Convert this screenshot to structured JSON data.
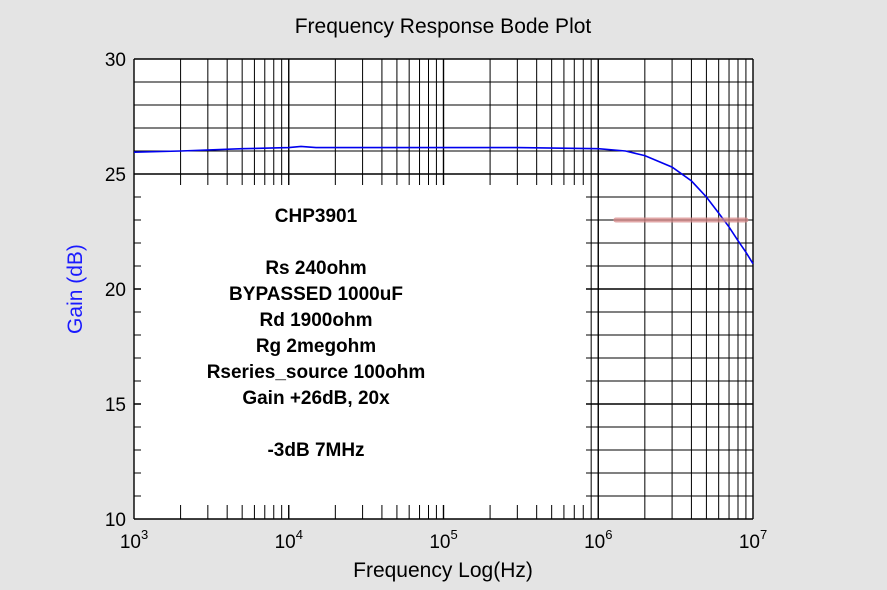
{
  "chart_data": {
    "type": "line",
    "title": "Frequency Response Bode Plot",
    "xlabel": "Frequency Log(Hz)",
    "ylabel": "Gain (dB)",
    "x_scale": "log",
    "xlim": [
      1000,
      10000000
    ],
    "ylim": [
      10,
      30
    ],
    "x_ticks": [
      {
        "base": "10",
        "exp": "3",
        "value": 1000
      },
      {
        "base": "10",
        "exp": "4",
        "value": 10000
      },
      {
        "base": "10",
        "exp": "5",
        "value": 100000
      },
      {
        "base": "10",
        "exp": "6",
        "value": 1000000
      },
      {
        "base": "10",
        "exp": "7",
        "value": 10000000
      }
    ],
    "y_ticks": [
      "10",
      "15",
      "20",
      "25",
      "30"
    ],
    "grid": true,
    "series_color": "#0000ee",
    "marker_color": "#d88a8a",
    "series": [
      {
        "x": [
          1000,
          2000,
          5000,
          10000,
          12000,
          15000,
          30000,
          100000,
          300000,
          1000000,
          1500000,
          2000000,
          3000000,
          4000000,
          5000000,
          6000000,
          7000000,
          8000000,
          9000000,
          10000000
        ],
        "y": [
          25.95,
          26.0,
          26.1,
          26.15,
          26.2,
          26.15,
          26.15,
          26.15,
          26.15,
          26.1,
          26.0,
          25.8,
          25.3,
          24.7,
          24.0,
          23.3,
          22.7,
          22.1,
          21.6,
          21.1
        ]
      }
    ],
    "marker_line": {
      "x": [
        1300000,
        9000000
      ],
      "y": 23.0
    },
    "annotation": {
      "lines": [
        "CHP3901",
        "",
        "Rs 240ohm",
        "BYPASSED 1000uF",
        "Rd 1900ohm",
        "Rg 2megohm",
        "Rseries_source 100ohm",
        "Gain +26dB, 20x",
        "",
        "-3dB 7MHz"
      ]
    }
  }
}
